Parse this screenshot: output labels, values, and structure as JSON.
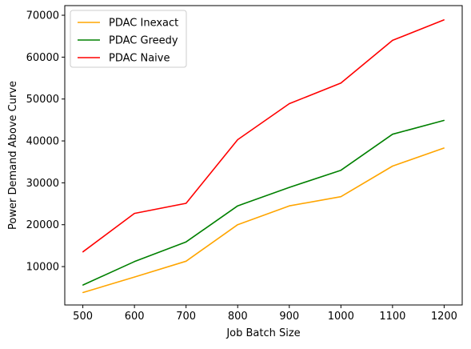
{
  "chart_data": {
    "type": "line",
    "title": "",
    "xlabel": "Job Batch Size",
    "ylabel": "Power Demand Above Curve",
    "x": [
      500,
      600,
      700,
      800,
      900,
      1000,
      1100,
      1200
    ],
    "xlim": [
      465,
      1235
    ],
    "ylim": [
      840,
      72300
    ],
    "x_ticks": [
      500,
      600,
      700,
      800,
      900,
      1000,
      1100,
      1200
    ],
    "y_ticks": [
      10000,
      20000,
      30000,
      40000,
      50000,
      60000,
      70000
    ],
    "grid": false,
    "legend_position": "top-left",
    "series": [
      {
        "name": "PDAC Inexact",
        "color": "#ffa500",
        "values": [
          3800,
          7500,
          11300,
          20000,
          24500,
          26700,
          34000,
          38300
        ]
      },
      {
        "name": "PDAC Greedy",
        "color": "#008000",
        "values": [
          5600,
          11200,
          15900,
          24500,
          28900,
          33000,
          41600,
          44900
        ]
      },
      {
        "name": "PDAC Naive",
        "color": "#ff0000",
        "values": [
          13500,
          22700,
          25100,
          40300,
          48900,
          53800,
          64000,
          68900
        ]
      }
    ]
  }
}
